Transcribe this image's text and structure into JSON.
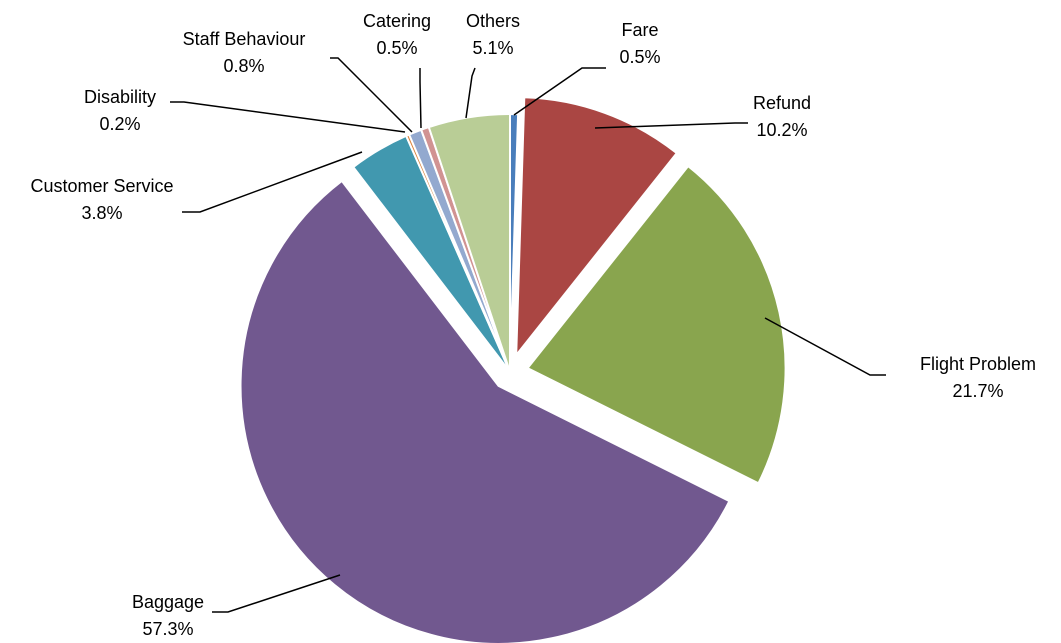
{
  "chart_data": {
    "type": "pie",
    "title": "",
    "slices": [
      {
        "label": "Fare",
        "pct_label": "0.5%",
        "value": 0.5,
        "color": "#4a7ebb",
        "exploded": false
      },
      {
        "label": "Refund",
        "pct_label": "10.2%",
        "value": 10.2,
        "color": "#aa4643",
        "exploded": true
      },
      {
        "label": "Flight Problem",
        "pct_label": "21.7%",
        "value": 21.7,
        "color": "#89a54e",
        "exploded": true
      },
      {
        "label": "Baggage",
        "pct_label": "57.3%",
        "value": 57.3,
        "color": "#71588f",
        "exploded": true
      },
      {
        "label": "Customer Service",
        "pct_label": "3.8%",
        "value": 3.8,
        "color": "#4198af",
        "exploded": false
      },
      {
        "label": "Disability",
        "pct_label": "0.2%",
        "value": 0.2,
        "color": "#db843d",
        "exploded": false
      },
      {
        "label": "Staff Behaviour",
        "pct_label": "0.8%",
        "value": 0.8,
        "color": "#93a9cf",
        "exploded": false
      },
      {
        "label": "Catering",
        "pct_label": "0.5%",
        "value": 0.5,
        "color": "#d19392",
        "exploded": false
      },
      {
        "label": "Others",
        "pct_label": "5.1%",
        "value": 5.1,
        "color": "#b9cd96",
        "exploded": false
      }
    ],
    "legend": "none"
  }
}
